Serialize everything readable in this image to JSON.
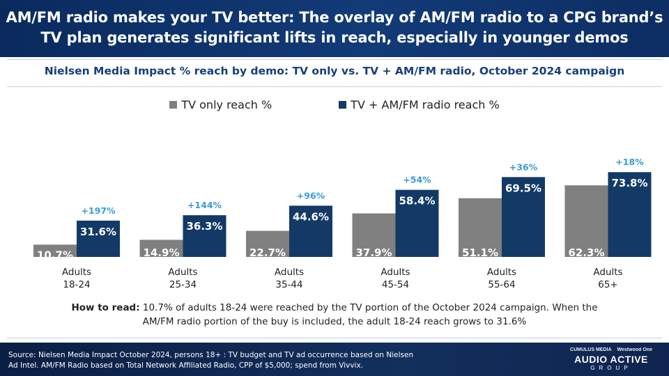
{
  "header": {
    "title_line1": "AM/FM radio makes your TV better: The overlay of AM/FM radio to a CPG brand’s",
    "title_line2": "TV plan generates significant lifts in reach, especially in younger demos"
  },
  "subtitle": "Nielsen Media Impact % reach by demo: TV only vs. TV + AM/FM radio, October 2024 campaign",
  "colors": {
    "header_bg": "#0f3468",
    "tv_only": "#808080",
    "tv_radio": "#133a66",
    "lift_label": "#3a9bd5",
    "subtitle": "#173f7a"
  },
  "chart_data": {
    "type": "bar",
    "categories": [
      "Adults\n18-24",
      "Adults\n25-34",
      "Adults\n35-44",
      "Adults\n45-54",
      "Adults\n55-64",
      "Adults\n65+"
    ],
    "series": [
      {
        "name": "TV only reach %",
        "values": [
          10.7,
          14.9,
          22.7,
          37.9,
          51.1,
          62.3
        ],
        "labels": [
          "10.7%",
          "14.9%",
          "22.7%",
          "37.9%",
          "51.1%",
          "62.3%"
        ]
      },
      {
        "name": "TV + AM/FM radio reach %",
        "values": [
          31.6,
          36.3,
          44.6,
          58.4,
          69.5,
          73.8
        ],
        "labels": [
          "31.6%",
          "36.3%",
          "44.6%",
          "58.4%",
          "69.5%",
          "73.8%"
        ]
      }
    ],
    "lift_labels": [
      "+197%",
      "+144%",
      "+96%",
      "+54%",
      "+36%",
      "+18%"
    ],
    "ylim": [
      0,
      100
    ],
    "legend_position": "top-center",
    "grid": false
  },
  "how_to_read": {
    "label": "How to read:",
    "text_line1": " 10.7% of adults 18-24 were reached by the TV portion of the October 2024 campaign. When the",
    "text_line2": "AM/FM radio portion of the buy is included, the adult 18-24 reach grows to 31.6%"
  },
  "footer": {
    "source_line1": "Source: Nielsen Media Impact October 2024, persons 18+ : TV budget and TV ad occurrence based on Nielsen",
    "source_line2": "Ad Intel. AM/FM Radio based on Total Network Affiliated Radio, CPP  of $5,000; spend from Vivvix.",
    "logo_top_left": "CUMULUS MEDIA",
    "logo_top_right": "Westwood One",
    "logo_main": "AUDIO ACTIVE",
    "logo_sub": "GROUP"
  }
}
